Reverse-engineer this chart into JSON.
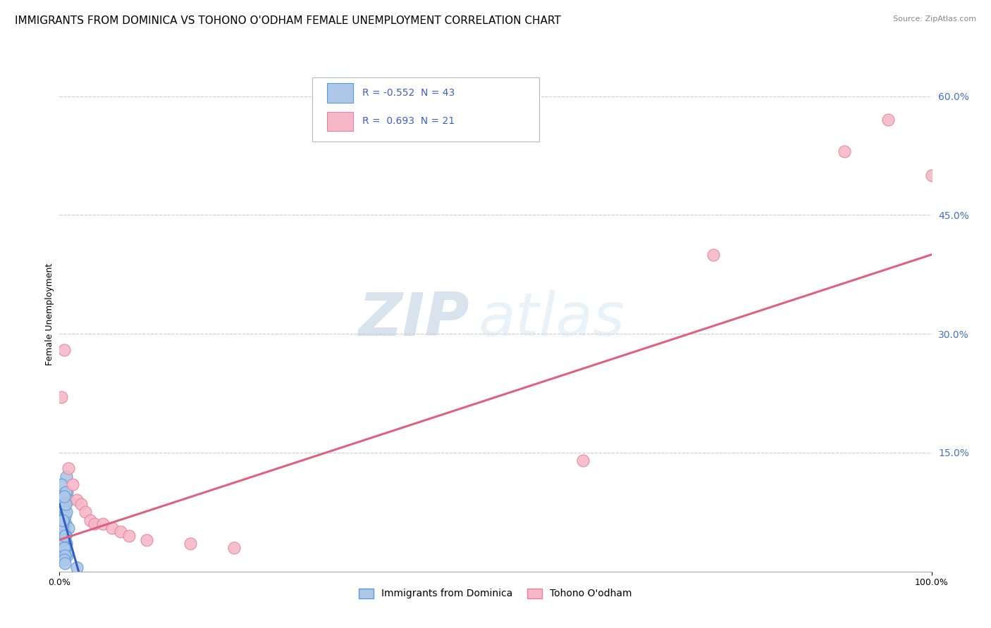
{
  "title": "IMMIGRANTS FROM DOMINICA VS TOHONO O'ODHAM FEMALE UNEMPLOYMENT CORRELATION CHART",
  "source": "Source: ZipAtlas.com",
  "ylabel": "Female Unemployment",
  "xlim": [
    0,
    1.0
  ],
  "ylim": [
    0,
    0.65
  ],
  "yticks_right": [
    0.0,
    0.15,
    0.3,
    0.45,
    0.6
  ],
  "ytick_labels_right": [
    "",
    "15.0%",
    "30.0%",
    "45.0%",
    "60.0%"
  ],
  "blue_color": "#aec6e8",
  "pink_color": "#f4b8c8",
  "blue_edge": "#5b9bd5",
  "pink_edge": "#e8829a",
  "blue_line_color": "#3060c0",
  "pink_line_color": "#e06080",
  "watermark_color": "#c8d8ea",
  "watermark_text": "ZIPatlas",
  "legend_R_blue": "-0.552",
  "legend_N_blue": "43",
  "legend_R_pink": "0.693",
  "legend_N_pink": "21",
  "legend_label_blue": "Immigrants from Dominica",
  "legend_label_pink": "Tohono O'odham",
  "blue_scatter_x": [
    0.002,
    0.003,
    0.004,
    0.005,
    0.006,
    0.007,
    0.008,
    0.009,
    0.01,
    0.002,
    0.003,
    0.004,
    0.005,
    0.006,
    0.007,
    0.008,
    0.009,
    0.01,
    0.002,
    0.003,
    0.004,
    0.005,
    0.006,
    0.007,
    0.008,
    0.009,
    0.003,
    0.004,
    0.005,
    0.006,
    0.007,
    0.008,
    0.003,
    0.004,
    0.005,
    0.006,
    0.007,
    0.004,
    0.005,
    0.006,
    0.005,
    0.006,
    0.02
  ],
  "blue_scatter_y": [
    0.08,
    0.055,
    0.04,
    0.03,
    0.05,
    0.06,
    0.12,
    0.1,
    0.09,
    0.07,
    0.085,
    0.095,
    0.065,
    0.05,
    0.035,
    0.025,
    0.02,
    0.055,
    0.11,
    0.075,
    0.06,
    0.08,
    0.07,
    0.045,
    0.035,
    0.025,
    0.09,
    0.065,
    0.04,
    0.03,
    0.1,
    0.075,
    0.055,
    0.04,
    0.03,
    0.02,
    0.085,
    0.065,
    0.095,
    0.045,
    0.015,
    0.01,
    0.005
  ],
  "pink_scatter_x": [
    0.002,
    0.005,
    0.01,
    0.015,
    0.02,
    0.025,
    0.03,
    0.035,
    0.04,
    0.05,
    0.06,
    0.07,
    0.08,
    0.1,
    0.15,
    0.2,
    0.6,
    0.75,
    0.9,
    0.95,
    1.0
  ],
  "pink_scatter_y": [
    0.22,
    0.28,
    0.13,
    0.11,
    0.09,
    0.085,
    0.075,
    0.065,
    0.06,
    0.06,
    0.055,
    0.05,
    0.045,
    0.04,
    0.035,
    0.03,
    0.14,
    0.4,
    0.53,
    0.57,
    0.5
  ],
  "blue_trend_x": [
    0.0,
    0.022
  ],
  "blue_trend_y": [
    0.085,
    0.0
  ],
  "pink_trend_x": [
    0.0,
    1.0
  ],
  "pink_trend_y": [
    0.04,
    0.4
  ],
  "grid_color": "#cccccc",
  "bg_color": "#ffffff",
  "title_fontsize": 11,
  "axis_fontsize": 9
}
